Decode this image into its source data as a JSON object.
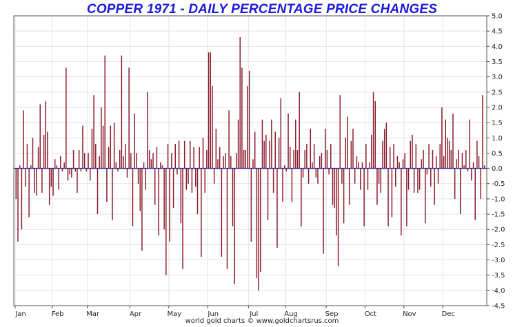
{
  "chart_data": {
    "type": "bar",
    "title": "COPPER 1971 - DAILY PERCENTAGE PRICE CHANGES",
    "credit": "world gold charts © www.goldchartsrus.com",
    "xlabel": "",
    "ylabel": "",
    "ylim": [
      -4.5,
      5.0
    ],
    "y_ticks": [
      -4.5,
      -4.0,
      -3.5,
      -3.0,
      -2.5,
      -2.0,
      -1.5,
      -1.0,
      -0.5,
      0.0,
      0.5,
      1.0,
      1.5,
      2.0,
      2.5,
      3.0,
      3.5,
      4.0,
      4.5,
      5.0
    ],
    "y_tick_labels": [
      "-4.5",
      "-4.0",
      "-3.5",
      "-3.0",
      "-2.5",
      "-2.0",
      "-1.5",
      "-1.0",
      "-0.5",
      "0.0",
      "0.5",
      "1.0",
      "1.5",
      "2.0",
      "2.5",
      "3.0",
      "3.5",
      "4.0",
      "4.5",
      "5.0"
    ],
    "y_axis_side": "right",
    "grid": true,
    "bar_color": "#8b1a2b",
    "title_color": "#1a1adb",
    "months": [
      {
        "label": "Jan",
        "start_index": 0
      },
      {
        "label": "Feb",
        "start_index": 20
      },
      {
        "label": "Mar",
        "start_index": 39
      },
      {
        "label": "Apr",
        "start_index": 62
      },
      {
        "label": "May",
        "start_index": 83
      },
      {
        "label": "Jun",
        "start_index": 104
      },
      {
        "label": "Jul",
        "start_index": 126
      },
      {
        "label": "Aug",
        "start_index": 146
      },
      {
        "label": "Sep",
        "start_index": 168
      },
      {
        "label": "Oct",
        "start_index": 189
      },
      {
        "label": "Nov",
        "start_index": 210
      },
      {
        "label": "Dec",
        "start_index": 231
      }
    ],
    "series": [
      {
        "values": [
          -1.0,
          -2.4,
          0.1,
          -2.0,
          1.9,
          -0.6,
          0.8,
          -1.6,
          0.1,
          1.0,
          -0.8,
          -0.9,
          0.7,
          2.1,
          -0.8,
          1.1,
          2.2,
          1.2,
          -1.2,
          -0.6,
          -0.9,
          0.3,
          0.1,
          -0.7,
          0.4,
          -0.1,
          0.2,
          3.3,
          -0.4,
          -0.2,
          -0.3,
          0.6,
          -0.1,
          -0.8,
          0.6,
          -0.1,
          1.4,
          0.5,
          -0.1,
          0.5,
          -0.4,
          1.3,
          2.4,
          0.8,
          -1.5,
          0.4,
          2.0,
          1.4,
          3.7,
          -1.1,
          0.7,
          1.4,
          -1.7,
          1.5,
          0.2,
          -0.1,
          0.6,
          3.7,
          0.4,
          0.8,
          -0.3,
          3.3,
          0.5,
          -1.9,
          1.8,
          0.5,
          -0.5,
          -1.4,
          -2.7,
          0.2,
          -0.7,
          2.5,
          0.6,
          0.3,
          0.5,
          -1.2,
          0.7,
          -2.2,
          0.2,
          0.1,
          -2.0,
          -3.5,
          0.8,
          -2.4,
          0.5,
          -1.3,
          0.8,
          -0.2,
          0.9,
          -1.8,
          -3.3,
          0.9,
          -0.7,
          -0.5,
          0.9,
          -0.8,
          0.7,
          -0.6,
          -1.5,
          0.7,
          -2.9,
          1.0,
          -0.8,
          0.6,
          3.8,
          3.8,
          2.7,
          -0.5,
          1.3,
          0.3,
          0.7,
          -2.9,
          0.4,
          0.5,
          -3.3,
          1.9,
          0.4,
          -1.9,
          -3.8,
          0.5,
          1.6,
          4.3,
          3.3,
          0.6,
          0.6,
          2.7,
          3.2,
          -2.4,
          0.3,
          1.2,
          -3.6,
          -4.0,
          -3.4,
          1.6,
          0.9,
          1.1,
          -1.7,
          0.9,
          1.6,
          -0.8,
          1.2,
          -2.6,
          1.0,
          2.3,
          -1.1,
          0.1,
          -0.1,
          1.8,
          0.7,
          -1.1,
          0.6,
          1.6,
          0.6,
          2.5,
          -1.9,
          -0.3,
          0.6,
          0.8,
          -0.5,
          1.3,
          0.2,
          0.8,
          -0.3,
          -0.5,
          0.4,
          0.5,
          -2.8,
          1.3,
          0.6,
          -0.2,
          0.8,
          -1.2,
          -1.3,
          -2.2,
          -3.2,
          2.4,
          -0.5,
          -1.8,
          1.0,
          1.7,
          -1.2,
          0.9,
          1.3,
          -0.5,
          0.4,
          0.2,
          -0.7,
          0.2,
          -1.9,
          0.8,
          -0.7,
          0.2,
          1.1,
          2.5,
          2.2,
          -1.2,
          -0.5,
          -0.8,
          0.9,
          1.3,
          1.5,
          -1.9,
          0.7,
          -1.6,
          0.8,
          -0.6,
          0.4,
          0.2,
          -2.2,
          0.3,
          0.5,
          -1.9,
          -0.7,
          0.9,
          1.1,
          -0.8,
          0.8,
          -0.8,
          -0.7,
          0.3,
          0.6,
          -1.8,
          -0.2,
          0.8,
          -0.6,
          0.6,
          -1.2,
          0.4,
          -0.5,
          0.8,
          2.0,
          0.4,
          1.6,
          1.0,
          0.9,
          0.6,
          1.8,
          -1.0,
          0.3,
          0.6,
          -1.5,
          0.5,
          0.1,
          0.6,
          -0.1,
          1.6,
          -0.4,
          0.2,
          -1.7,
          0.9,
          0.4,
          -1.0,
          2.4,
          0.1
        ]
      }
    ]
  }
}
